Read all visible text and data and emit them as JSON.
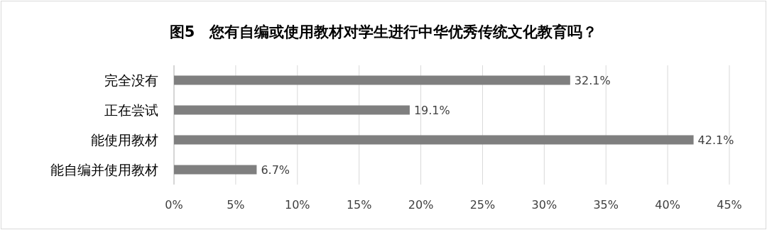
{
  "chart_data": {
    "type": "bar",
    "orientation": "horizontal",
    "title": "图5　您有自编或使用教材对学生进行中华优秀传统文化教育吗？",
    "categories": [
      "完全没有",
      "正在尝试",
      "能使用教材",
      "能自编并使用教材"
    ],
    "values": [
      32.1,
      19.1,
      42.1,
      6.7
    ],
    "value_labels": [
      "32.1%",
      "19.1%",
      "42.1%",
      "6.7%"
    ],
    "color": "#7f7f7f",
    "xlim": [
      0,
      45
    ],
    "xticks": [
      {
        "value": 0,
        "label": "0%"
      },
      {
        "value": 5,
        "label": "5%"
      },
      {
        "value": 10,
        "label": "10%"
      },
      {
        "value": 15,
        "label": "15%"
      },
      {
        "value": 20,
        "label": "20%"
      },
      {
        "value": 25,
        "label": "25%"
      },
      {
        "value": 30,
        "label": "30%"
      },
      {
        "value": 35,
        "label": "35%"
      },
      {
        "value": 40,
        "label": "40%"
      },
      {
        "value": 45,
        "label": "45%"
      }
    ],
    "grid": "x"
  }
}
